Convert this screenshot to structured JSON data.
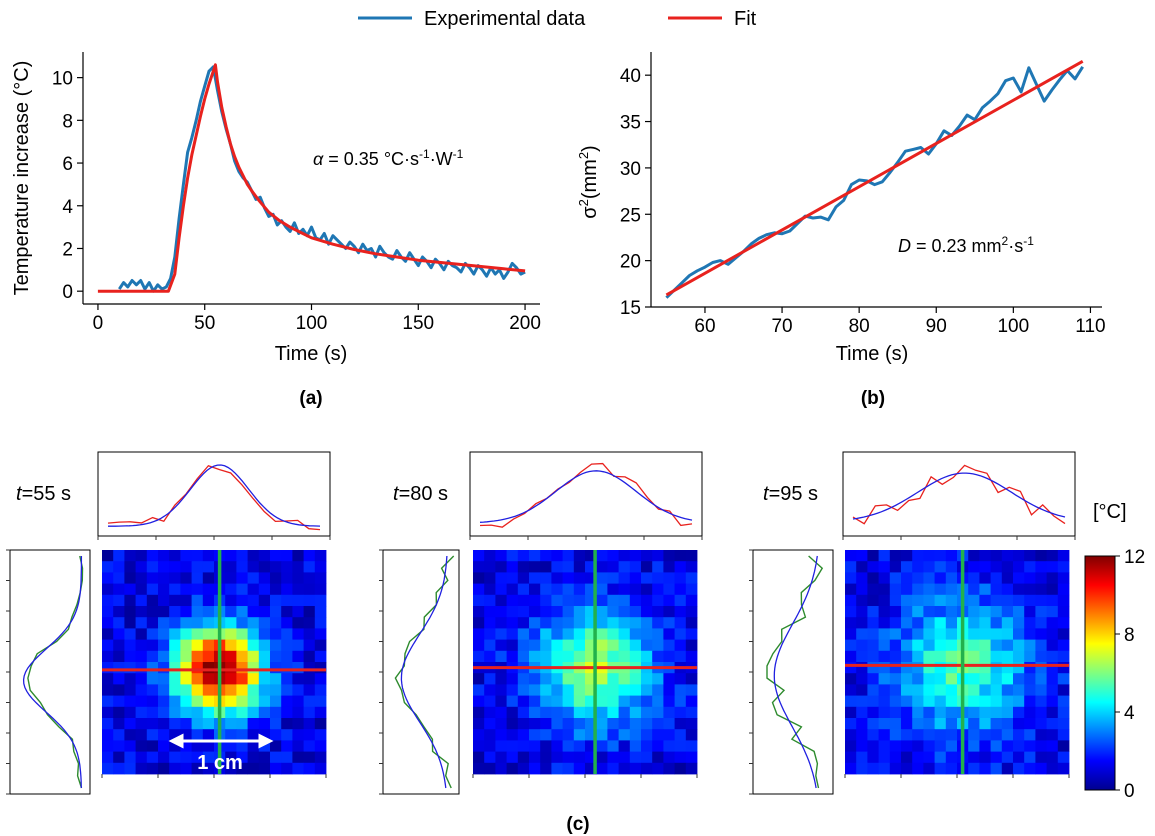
{
  "legend": {
    "items": [
      {
        "label": "Experimental data",
        "color": "#1f77b4"
      },
      {
        "label": "Fit",
        "color": "#e8221e"
      }
    ],
    "placement": "top-center"
  },
  "panels": {
    "a": {
      "label": "(a)",
      "annotation_symbol": "α",
      "annotation_value": " = 0.35 °C·s",
      "annotation_sup1": "-1",
      "annotation_mid": "·W",
      "annotation_sup2": "-1"
    },
    "b": {
      "label": "(b)",
      "annotation_symbol": "D",
      "annotation_value": " = 0.23 mm",
      "annotation_sup1": "2",
      "annotation_mid": "·s",
      "annotation_sup2": "-1"
    },
    "c": {
      "label": "(c)",
      "maps": [
        {
          "t_symbol": "t",
          "t_value": "=55 s",
          "scale_label": "1 cm"
        },
        {
          "t_symbol": "t",
          "t_value": "=80 s"
        },
        {
          "t_symbol": "t",
          "t_value": "=95 s"
        }
      ],
      "colorbar": {
        "unit": "[°C]",
        "ticks": [
          "0",
          "4",
          "8",
          "12"
        ],
        "min": 0,
        "max": 12
      }
    }
  },
  "chart_data": [
    {
      "type": "line",
      "panel": "a",
      "xlabel": "Time (s)",
      "ylabel": "Temperature increase (°C)",
      "xlim": [
        -7,
        207
      ],
      "ylim": [
        -0.6,
        11.2
      ],
      "xticks": [
        0,
        50,
        100,
        150,
        200
      ],
      "yticks": [
        0,
        2,
        4,
        6,
        8,
        10
      ],
      "series": [
        {
          "name": "Experimental data",
          "color": "#1f77b4",
          "x": [
            10,
            12,
            14,
            16,
            18,
            20,
            22,
            24,
            26,
            28,
            30,
            32,
            34,
            36,
            38,
            40,
            42,
            44,
            46,
            48,
            50,
            52,
            54,
            56,
            58,
            60,
            62,
            64,
            66,
            68,
            70,
            72,
            74,
            76,
            78,
            80,
            82,
            84,
            86,
            88,
            90,
            92,
            94,
            96,
            98,
            100,
            102,
            104,
            106,
            108,
            110,
            112,
            114,
            116,
            118,
            120,
            122,
            124,
            126,
            128,
            130,
            132,
            134,
            136,
            138,
            140,
            142,
            144,
            146,
            148,
            150,
            152,
            154,
            156,
            158,
            160,
            162,
            164,
            166,
            168,
            170,
            172,
            174,
            176,
            178,
            180,
            182,
            184,
            186,
            188,
            190,
            192,
            194,
            196,
            198,
            200
          ],
          "y": [
            0.1,
            0.4,
            0.2,
            0.5,
            0.3,
            0.5,
            0.1,
            0.4,
            0.0,
            0.3,
            0.1,
            0.2,
            0.6,
            1.6,
            3.4,
            5.0,
            6.5,
            7.2,
            8.0,
            8.9,
            9.6,
            10.3,
            10.5,
            9.4,
            8.4,
            7.6,
            6.9,
            6.1,
            5.6,
            5.3,
            5.1,
            4.7,
            4.3,
            4.4,
            3.9,
            3.5,
            3.6,
            3.1,
            3.3,
            3.0,
            2.8,
            3.2,
            2.7,
            2.9,
            2.6,
            3.0,
            2.5,
            2.4,
            2.7,
            2.2,
            2.6,
            2.4,
            2.2,
            2.0,
            2.3,
            2.1,
            1.8,
            2.2,
            1.9,
            2.0,
            1.6,
            2.1,
            1.8,
            1.6,
            1.5,
            1.9,
            1.6,
            1.4,
            1.8,
            1.5,
            1.2,
            1.6,
            1.4,
            1.1,
            1.5,
            1.3,
            1.0,
            1.4,
            1.2,
            1.1,
            0.9,
            1.3,
            1.1,
            0.8,
            1.2,
            1.0,
            0.7,
            1.1,
            0.8,
            1.0,
            0.6,
            0.9,
            1.3,
            1.1,
            0.8,
            0.9
          ]
        },
        {
          "name": "Fit",
          "color": "#e8221e",
          "x": [
            0,
            10,
            20,
            30,
            33,
            36,
            38,
            40,
            42,
            44,
            46,
            48,
            50,
            52,
            54,
            55,
            56,
            58,
            60,
            62,
            64,
            66,
            68,
            70,
            72,
            75,
            80,
            85,
            90,
            95,
            100,
            110,
            120,
            130,
            140,
            150,
            160,
            170,
            180,
            190,
            200
          ],
          "y": [
            0,
            0,
            0,
            0,
            0,
            0.8,
            2.5,
            4.0,
            5.3,
            6.4,
            7.3,
            8.2,
            9.0,
            9.7,
            10.3,
            10.6,
            9.8,
            8.6,
            7.7,
            6.9,
            6.3,
            5.8,
            5.4,
            5.0,
            4.7,
            4.3,
            3.7,
            3.3,
            3.0,
            2.75,
            2.5,
            2.2,
            1.95,
            1.75,
            1.6,
            1.45,
            1.35,
            1.25,
            1.15,
            1.05,
            0.95
          ]
        }
      ]
    },
    {
      "type": "line",
      "panel": "b",
      "xlabel": "Time (s)",
      "ylabel_base": "σ",
      "ylabel_sup": "2",
      "ylabel_unit": "(mm",
      "ylabel_unit_sup": "2",
      "ylabel_close": ")",
      "xlim": [
        53,
        111.5
      ],
      "ylim": [
        15,
        42.5
      ],
      "xticks": [
        60,
        70,
        80,
        90,
        100,
        110
      ],
      "yticks": [
        15,
        20,
        25,
        30,
        35,
        40
      ],
      "series": [
        {
          "name": "Experimental data",
          "color": "#1f77b4",
          "x": [
            55,
            56,
            57,
            58,
            59,
            60,
            61,
            62,
            63,
            64,
            65,
            66,
            67,
            68,
            69,
            70,
            71,
            72,
            73,
            74,
            75,
            76,
            77,
            78,
            79,
            80,
            81,
            82,
            83,
            84,
            85,
            86,
            87,
            88,
            89,
            90,
            91,
            92,
            93,
            94,
            95,
            96,
            97,
            98,
            99,
            100,
            101,
            102,
            103,
            104,
            105,
            106,
            107,
            108,
            109
          ],
          "y": [
            16.0,
            16.8,
            17.6,
            18.4,
            18.9,
            19.3,
            19.8,
            20.0,
            19.6,
            20.3,
            21.0,
            21.8,
            22.4,
            22.8,
            23.0,
            22.9,
            23.2,
            24.0,
            24.8,
            24.6,
            24.7,
            24.4,
            25.8,
            26.5,
            28.2,
            28.7,
            28.6,
            28.2,
            28.5,
            29.5,
            30.6,
            31.8,
            32.0,
            32.2,
            31.5,
            32.6,
            34.0,
            33.5,
            34.5,
            35.7,
            35.2,
            36.5,
            37.2,
            38.0,
            39.4,
            39.7,
            38.2,
            40.8,
            39.0,
            37.2,
            38.4,
            39.5,
            40.5,
            39.6,
            40.9
          ]
        },
        {
          "name": "Fit",
          "color": "#e8221e",
          "x": [
            55,
            109
          ],
          "y": [
            16.3,
            41.5
          ]
        }
      ]
    },
    {
      "type": "heatmap",
      "panel": "c",
      "maps": [
        {
          "t": 55,
          "peak": 11.5,
          "sigma": 2.6,
          "cx": 10.0,
          "cy": 10.2
        },
        {
          "t": 80,
          "peak": 5.3,
          "sigma": 3.6,
          "cx": 10.4,
          "cy": 10.0
        },
        {
          "t": 95,
          "peak": 4.2,
          "sigma": 4.2,
          "cx": 10.0,
          "cy": 9.8
        }
      ],
      "grid_size": 20,
      "colorbar_range": [
        0,
        12
      ]
    }
  ]
}
